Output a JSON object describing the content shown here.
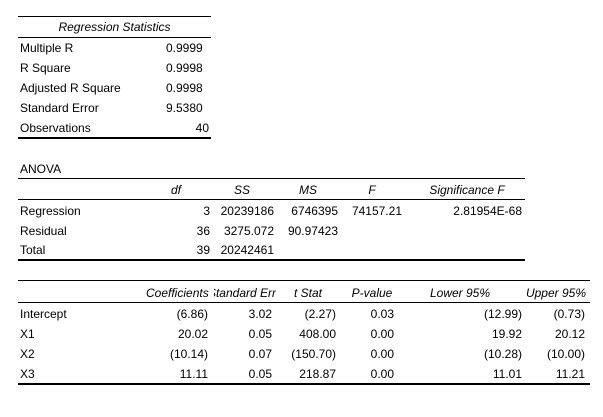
{
  "regression_statistics": {
    "title": "Regression Statistics",
    "rows": [
      {
        "label": "Multiple R",
        "value": "0.9999"
      },
      {
        "label": "R Square",
        "value": "0.9998"
      },
      {
        "label": "Adjusted R Square",
        "value": "0.9998"
      },
      {
        "label": "Standard Error",
        "value": "9.5380"
      },
      {
        "label": "Observations",
        "value": "40"
      }
    ]
  },
  "anova": {
    "title": "ANOVA",
    "headers": {
      "df": "df",
      "ss": "SS",
      "ms": "MS",
      "f": "F",
      "sig": "Significance F"
    },
    "rows": [
      {
        "label": "Regression",
        "df": "3",
        "ss": "20239186",
        "ms": "6746395",
        "f": "74157.21",
        "sig": "2.81954E-68"
      },
      {
        "label": "Residual",
        "df": "36",
        "ss": "3275.072",
        "ms": "90.97423",
        "f": "",
        "sig": ""
      },
      {
        "label": "Total",
        "df": "39",
        "ss": "20242461",
        "ms": "",
        "f": "",
        "sig": ""
      }
    ]
  },
  "coefficients": {
    "headers": {
      "coef": "Coefficients",
      "se": "Standard Err",
      "t": "t Stat",
      "p": "P-value",
      "lower": "Lower 95%",
      "upper": "Upper 95%"
    },
    "rows": [
      {
        "label": "Intercept",
        "coef": "(6.86)",
        "se": "3.02",
        "t": "(2.27)",
        "p": "0.03",
        "lower": "(12.99)",
        "upper": "(0.73)"
      },
      {
        "label": "X1",
        "coef": "20.02",
        "se": "0.05",
        "t": "408.00",
        "p": "0.00",
        "lower": "19.92",
        "upper": "20.12"
      },
      {
        "label": "X2",
        "coef": "(10.14)",
        "se": "0.07",
        "t": "(150.70)",
        "p": "0.00",
        "lower": "(10.28)",
        "upper": "(10.00)"
      },
      {
        "label": "X3",
        "coef": "11.11",
        "se": "0.05",
        "t": "218.87",
        "p": "0.00",
        "lower": "11.01",
        "upper": "11.21"
      }
    ]
  }
}
